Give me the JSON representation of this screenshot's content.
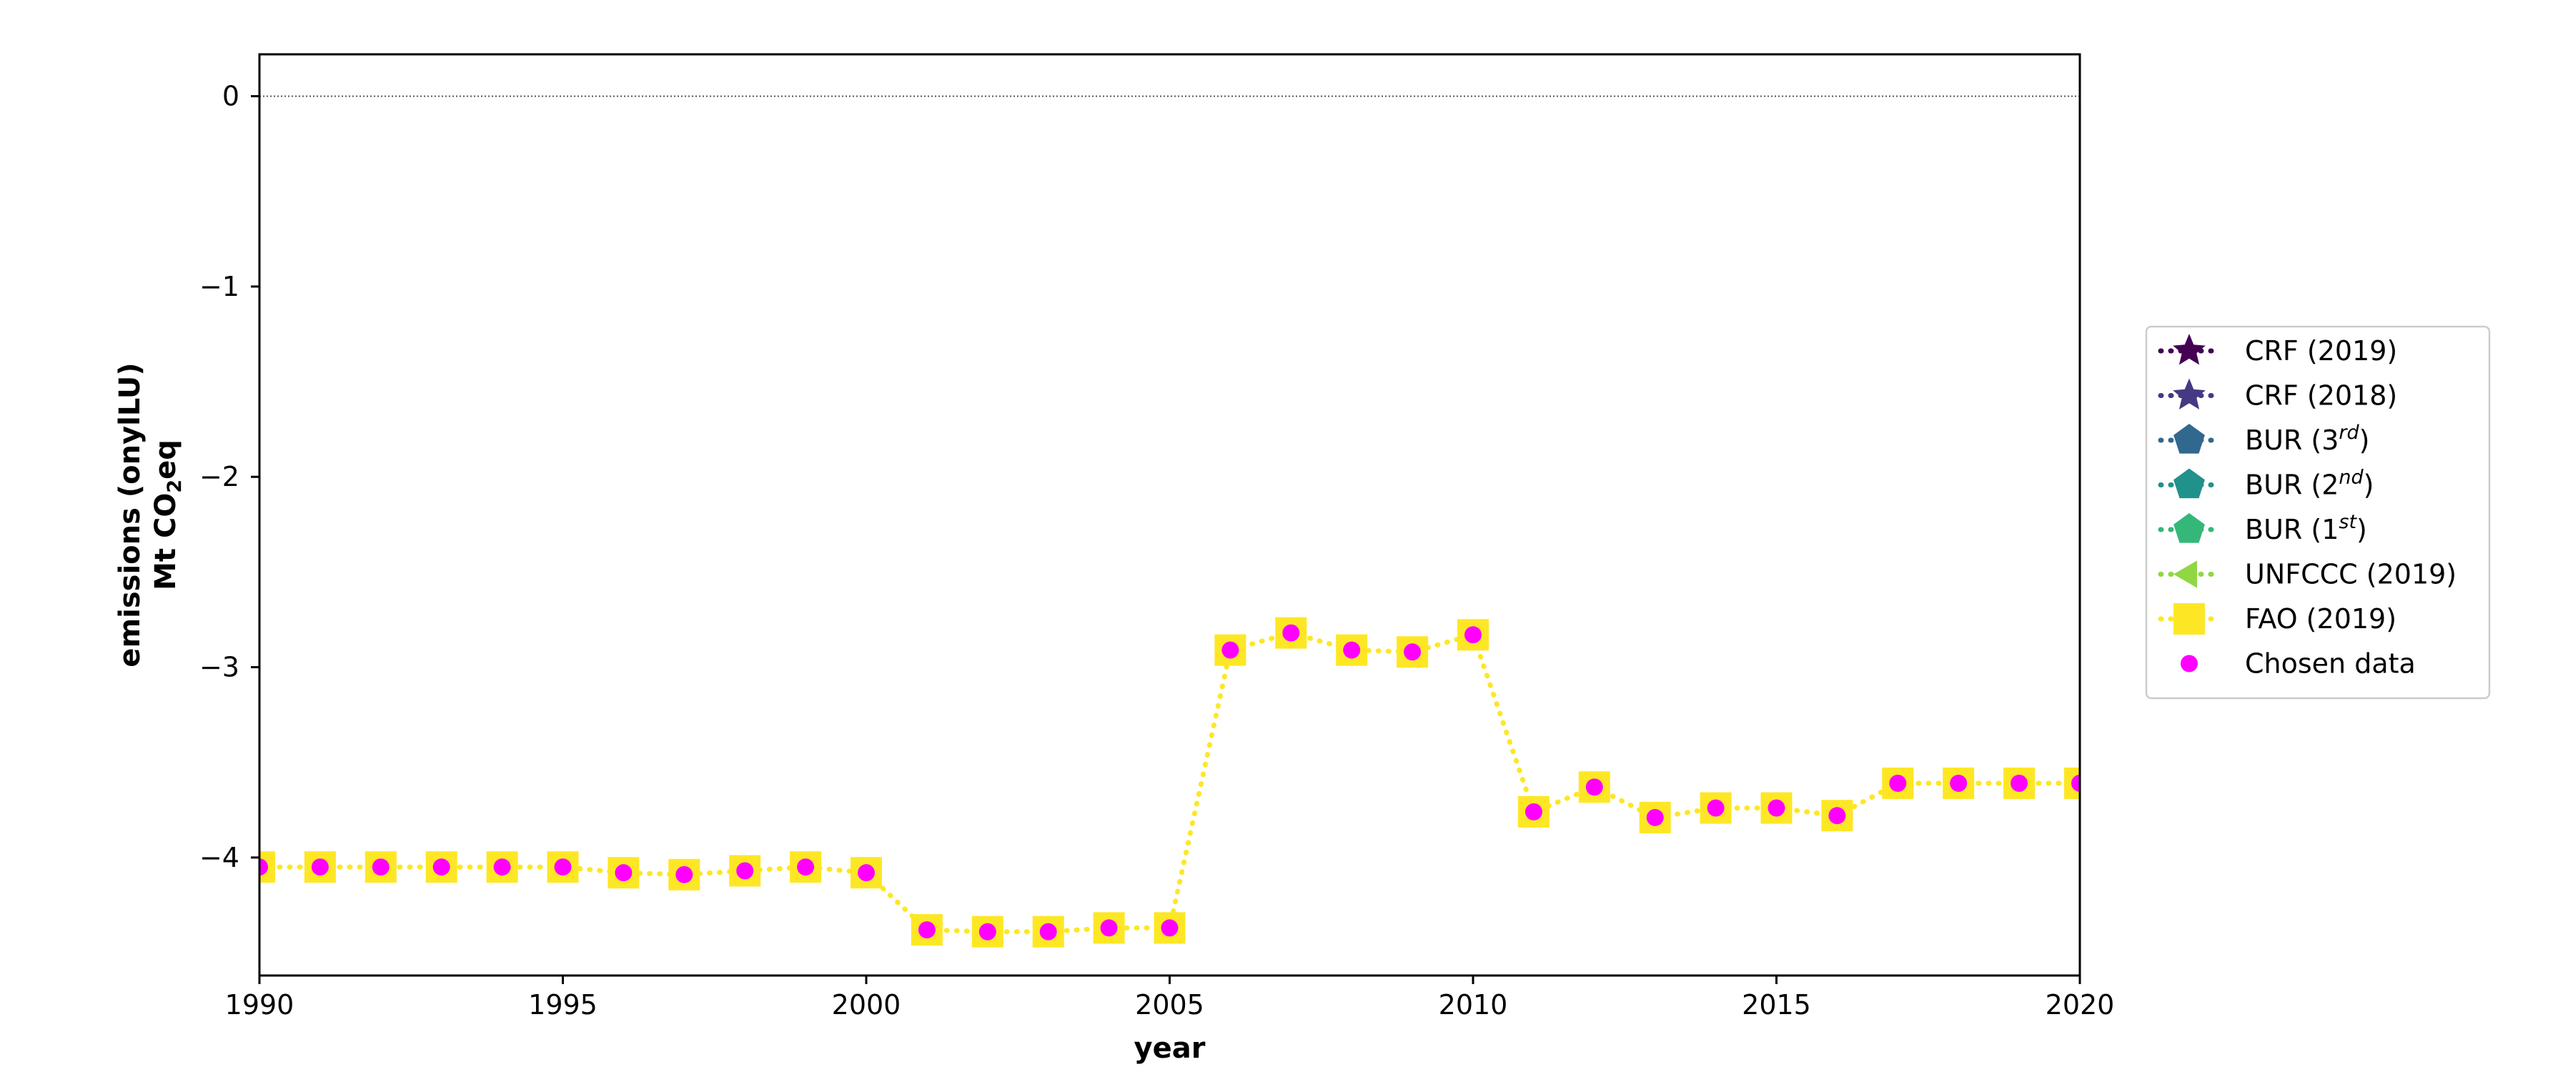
{
  "chart_data": {
    "type": "line",
    "xlabel": "year",
    "ylabel_line1": "emissions (onylLU)",
    "ylabel_line2_prefix": "Mt CO",
    "ylabel_line2_sub": "2",
    "ylabel_line2_suffix": "eq",
    "xlim": [
      1990,
      2020
    ],
    "ylim": [
      -4.62,
      0.22
    ],
    "xticks": [
      1990,
      1995,
      2000,
      2005,
      2010,
      2015,
      2020
    ],
    "yticks": [
      0,
      -1,
      -2,
      -3,
      -4
    ],
    "ytick_labels": [
      "0",
      "−1",
      "−2",
      "−3",
      "−4"
    ],
    "zero_line": true,
    "grid": false,
    "legend_position": "outside-right",
    "x": [
      1990,
      1991,
      1992,
      1993,
      1994,
      1995,
      1996,
      1997,
      1998,
      1999,
      2000,
      2001,
      2002,
      2003,
      2004,
      2005,
      2006,
      2007,
      2008,
      2009,
      2010,
      2011,
      2012,
      2013,
      2014,
      2015,
      2016,
      2017,
      2018,
      2019,
      2020
    ],
    "series": [
      {
        "name": "FAO (2019)",
        "color": "#fde725",
        "marker": "square",
        "linestyle": "dotted",
        "values": [
          -4.05,
          -4.05,
          -4.05,
          -4.05,
          -4.05,
          -4.05,
          -4.08,
          -4.09,
          -4.07,
          -4.05,
          -4.08,
          -4.38,
          -4.39,
          -4.39,
          -4.37,
          -4.37,
          -2.91,
          -2.82,
          -2.91,
          -2.92,
          -2.83,
          -3.76,
          -3.63,
          -3.79,
          -3.74,
          -3.74,
          -3.78,
          -3.61,
          -3.61,
          -3.61,
          -3.61
        ]
      },
      {
        "name": "Chosen data",
        "color": "#ff00ff",
        "marker": "circle",
        "linestyle": "none",
        "values": [
          -4.05,
          -4.05,
          -4.05,
          -4.05,
          -4.05,
          -4.05,
          -4.08,
          -4.09,
          -4.07,
          -4.05,
          -4.08,
          -4.38,
          -4.39,
          -4.39,
          -4.37,
          -4.37,
          -2.91,
          -2.82,
          -2.91,
          -2.92,
          -2.83,
          -3.76,
          -3.63,
          -3.79,
          -3.74,
          -3.74,
          -3.78,
          -3.61,
          -3.61,
          -3.61,
          -3.61
        ]
      }
    ],
    "legend": [
      {
        "label": "CRF (2019)",
        "label_sup": "",
        "label_end": "",
        "color": "#440154",
        "marker": "star"
      },
      {
        "label": "CRF (2018)",
        "label_sup": "",
        "label_end": "",
        "color": "#443983",
        "marker": "star"
      },
      {
        "label": "BUR (3",
        "label_sup": "rd",
        "label_end": ")",
        "color": "#31688e",
        "marker": "pentagon"
      },
      {
        "label": "BUR (2",
        "label_sup": "nd",
        "label_end": ")",
        "color": "#21918c",
        "marker": "pentagon"
      },
      {
        "label": "BUR (1",
        "label_sup": "st",
        "label_end": ")",
        "color": "#35b779",
        "marker": "pentagon"
      },
      {
        "label": "UNFCCC (2019)",
        "label_sup": "",
        "label_end": "",
        "color": "#90d743",
        "marker": "triangle-left"
      },
      {
        "label": "FAO (2019)",
        "label_sup": "",
        "label_end": "",
        "color": "#fde725",
        "marker": "square"
      },
      {
        "label": "Chosen data",
        "label_sup": "",
        "label_end": "",
        "color": "#ff00ff",
        "marker": "circle",
        "no_line": true
      }
    ]
  }
}
